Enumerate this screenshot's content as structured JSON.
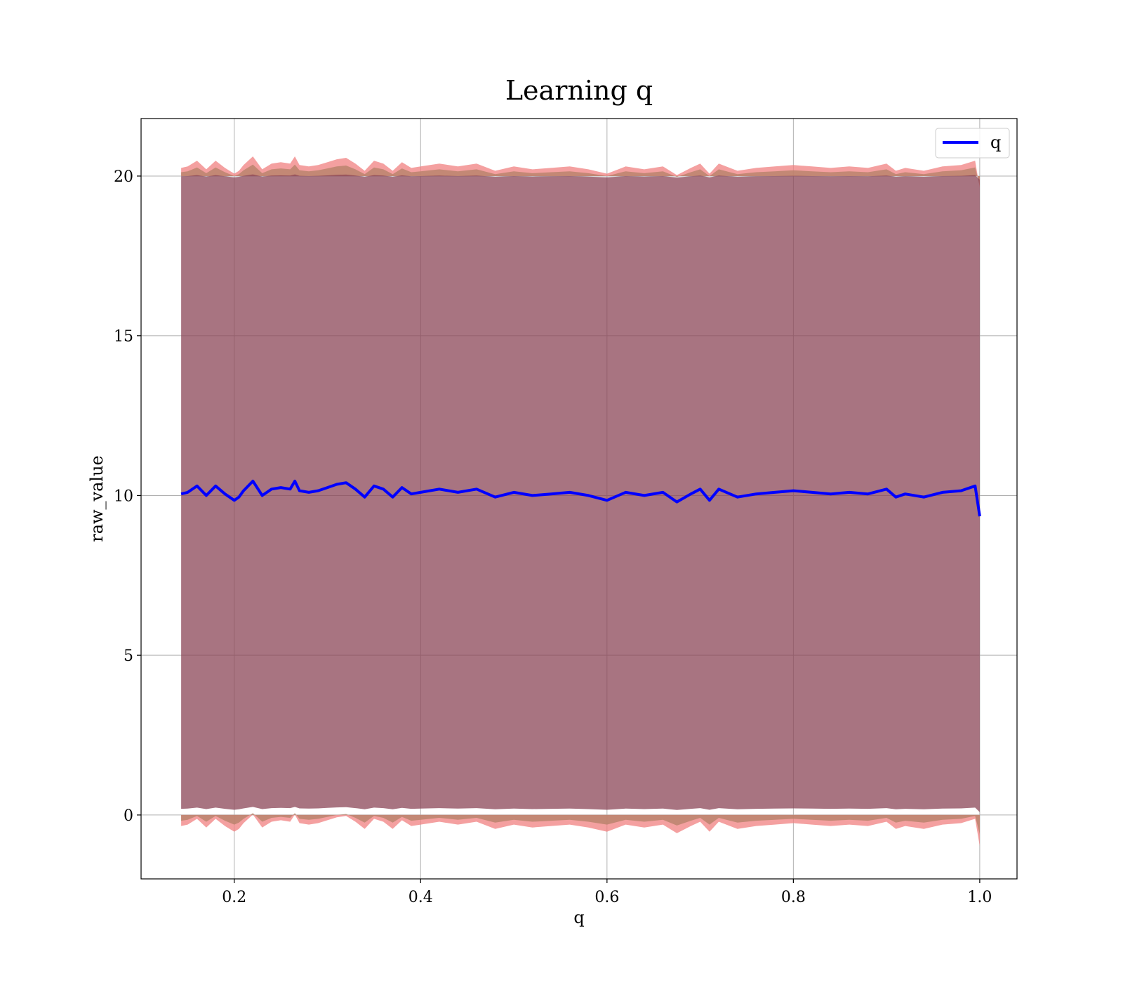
{
  "chart_data": {
    "type": "line",
    "title": "Learning q",
    "xlabel": "q",
    "ylabel": "raw_value",
    "xlim": [
      0.1,
      1.04
    ],
    "ylim": [
      -2,
      21.8
    ],
    "x_ticks": [
      0.2,
      0.4,
      0.6,
      0.8,
      1.0
    ],
    "x_tick_labels": [
      "0.2",
      "0.4",
      "0.6",
      "0.8",
      "1.0"
    ],
    "y_ticks": [
      0,
      5,
      10,
      15,
      20
    ],
    "y_tick_labels": [
      "0",
      "5",
      "10",
      "15",
      "20"
    ],
    "grid": true,
    "legend": {
      "placement": "top-right",
      "entries": [
        "q"
      ]
    },
    "series": [
      {
        "name": "q",
        "color": "#0000ff",
        "x": [
          0.143,
          0.15,
          0.16,
          0.17,
          0.18,
          0.19,
          0.2,
          0.205,
          0.21,
          0.22,
          0.23,
          0.24,
          0.25,
          0.26,
          0.265,
          0.27,
          0.28,
          0.29,
          0.3,
          0.31,
          0.32,
          0.33,
          0.34,
          0.35,
          0.36,
          0.37,
          0.38,
          0.39,
          0.4,
          0.42,
          0.44,
          0.46,
          0.48,
          0.5,
          0.52,
          0.54,
          0.56,
          0.58,
          0.6,
          0.62,
          0.64,
          0.66,
          0.675,
          0.69,
          0.7,
          0.71,
          0.72,
          0.74,
          0.76,
          0.78,
          0.8,
          0.82,
          0.84,
          0.86,
          0.88,
          0.9,
          0.91,
          0.92,
          0.94,
          0.96,
          0.98,
          0.995,
          1.0
        ],
        "values": [
          10.05,
          10.1,
          10.3,
          10.0,
          10.3,
          10.05,
          9.85,
          9.95,
          10.15,
          10.45,
          10.0,
          10.2,
          10.25,
          10.2,
          10.45,
          10.15,
          10.1,
          10.15,
          10.25,
          10.35,
          10.4,
          10.2,
          9.95,
          10.3,
          10.2,
          9.95,
          10.25,
          10.05,
          10.1,
          10.2,
          10.1,
          10.2,
          9.95,
          10.1,
          10.0,
          10.05,
          10.1,
          10.0,
          9.85,
          10.1,
          10.0,
          10.1,
          9.8,
          10.05,
          10.2,
          9.85,
          10.2,
          9.95,
          10.05,
          10.1,
          10.15,
          10.1,
          10.05,
          10.1,
          10.05,
          10.2,
          9.95,
          10.05,
          9.95,
          10.1,
          10.15,
          10.3,
          9.35
        ]
      }
    ],
    "bands": [
      {
        "description_color": "#8b4557",
        "lower": 0.2,
        "upper": 20.0
      }
    ]
  }
}
